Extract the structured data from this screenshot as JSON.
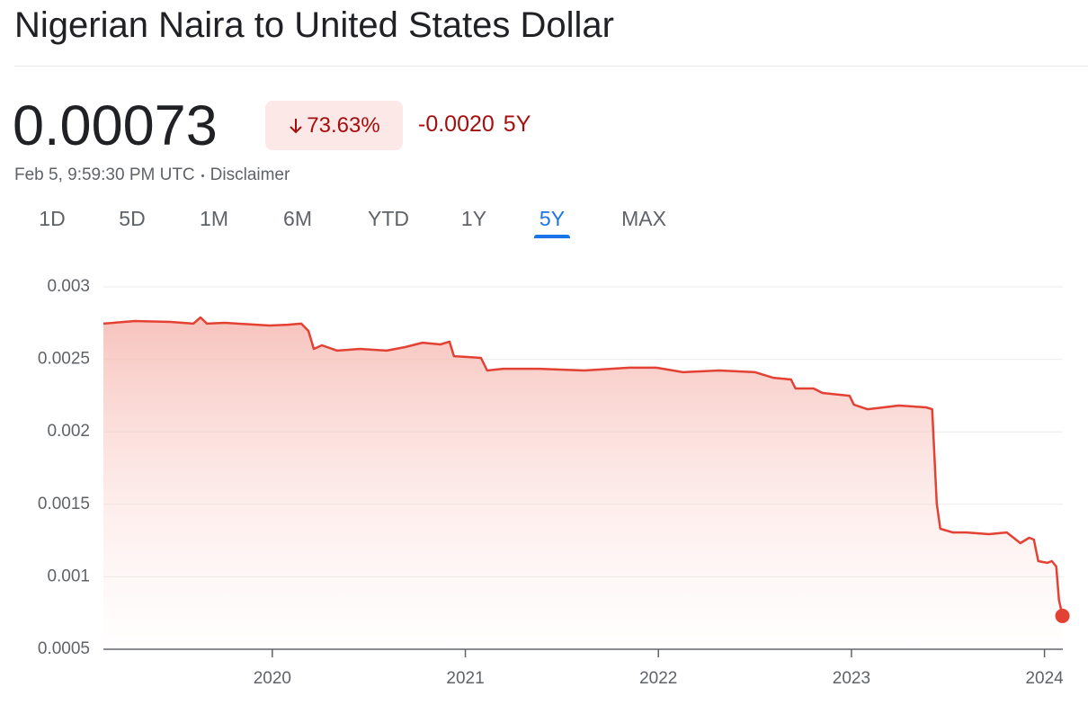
{
  "header": {
    "title": "Nigerian Naira to United States Dollar",
    "price": "0.00073",
    "change_percent": "73.63%",
    "change": "-0.0020",
    "period": "5Y",
    "timestamp": "Feb 5, 9:59:30 PM UTC",
    "disclaimer": "Disclaimer"
  },
  "tabs": [
    {
      "label": "1D"
    },
    {
      "label": "5D"
    },
    {
      "label": "1M"
    },
    {
      "label": "6M"
    },
    {
      "label": "YTD"
    },
    {
      "label": "1Y"
    },
    {
      "label": "5Y",
      "selected": true
    },
    {
      "label": "MAX"
    }
  ],
  "chart_data": {
    "type": "line",
    "color": "#e34133",
    "x": [
      2019.125,
      2019.288,
      2019.474,
      2019.591,
      2019.628,
      2019.661,
      2019.754,
      2019.986,
      2020.08,
      2020.15,
      2020.187,
      2020.215,
      2020.257,
      2020.336,
      2020.452,
      2020.592,
      2020.685,
      2020.778,
      2020.871,
      2020.918,
      2020.941,
      2021.011,
      2021.081,
      2021.113,
      2021.197,
      2021.383,
      2021.616,
      2021.849,
      2021.989,
      2022.128,
      2022.315,
      2022.501,
      2022.594,
      2022.687,
      2022.71,
      2022.804,
      2022.85,
      2022.99,
      2023.013,
      2023.083,
      2023.246,
      2023.386,
      2023.418,
      2023.442,
      2023.46,
      2023.525,
      2023.595,
      2023.712,
      2023.805,
      2023.875,
      2023.921,
      2023.945,
      2023.968,
      2024.014,
      2024.038,
      2024.061,
      2024.075,
      2024.093
    ],
    "values": [
      0.002746,
      0.002764,
      0.002758,
      0.002746,
      0.002789,
      0.002746,
      0.002752,
      0.002733,
      0.002739,
      0.002746,
      0.002696,
      0.002572,
      0.002597,
      0.00256,
      0.002572,
      0.00256,
      0.002584,
      0.002615,
      0.002603,
      0.002622,
      0.002522,
      0.002516,
      0.00251,
      0.002423,
      0.002435,
      0.002435,
      0.002423,
      0.002442,
      0.002442,
      0.002411,
      0.002423,
      0.002411,
      0.002373,
      0.002361,
      0.002299,
      0.002299,
      0.002268,
      0.002249,
      0.002187,
      0.002156,
      0.002181,
      0.002169,
      0.002156,
      0.001505,
      0.001331,
      0.001306,
      0.001306,
      0.001294,
      0.001306,
      0.001232,
      0.001269,
      0.001257,
      0.001108,
      0.001096,
      0.001108,
      0.001071,
      0.000841,
      0.00073
    ],
    "xlim": [
      2019.125,
      2024.095
    ],
    "xticks": [
      2020,
      2021,
      2022,
      2023,
      2024
    ],
    "ylim": [
      0.0005,
      0.003
    ],
    "yticks": [
      0.003,
      0.0025,
      0.002,
      0.0015,
      0.001,
      0.0005
    ],
    "grid": true
  }
}
